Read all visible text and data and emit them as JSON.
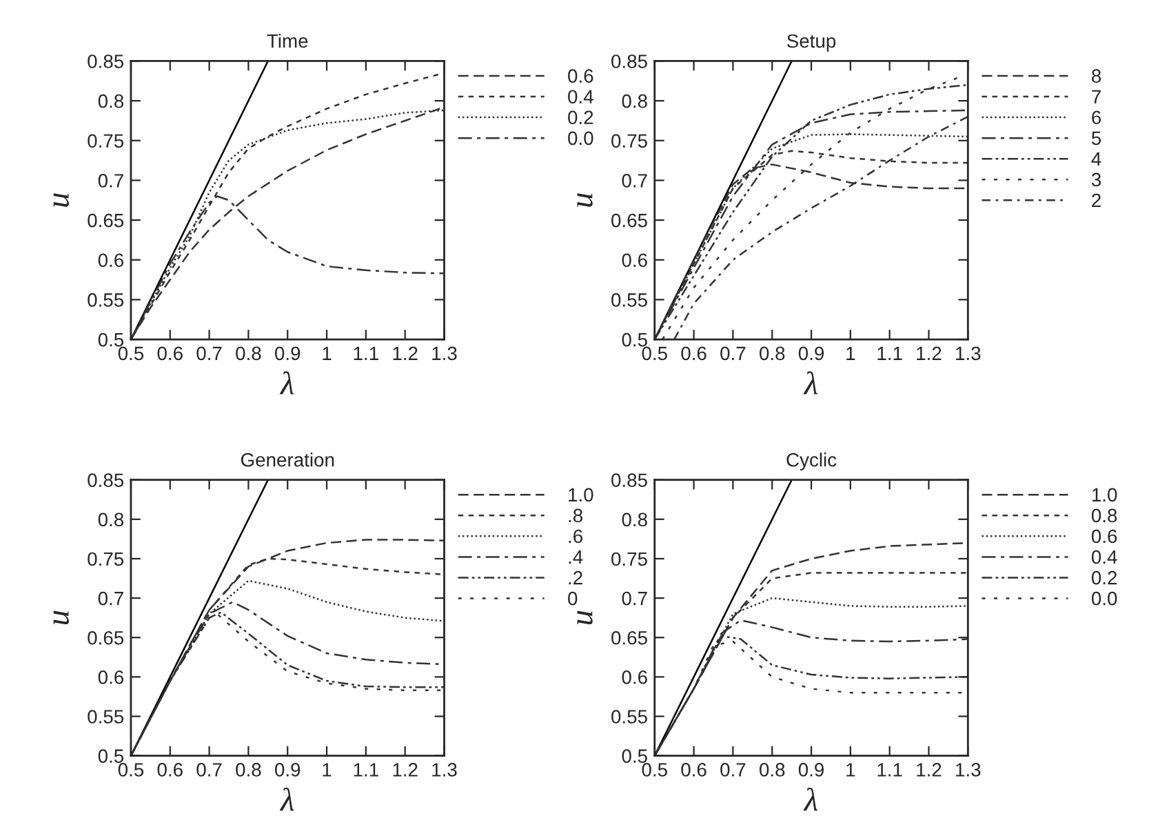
{
  "chart_data": [
    {
      "type": "line",
      "title": "Time",
      "xlabel": "λ",
      "ylabel": "u",
      "xlim": [
        0.5,
        1.3
      ],
      "ylim": [
        0.5,
        0.85
      ],
      "xticks": [
        0.5,
        0.6,
        0.7,
        0.8,
        0.9,
        1,
        1.1,
        1.2,
        1.3
      ],
      "yticks": [
        0.5,
        0.55,
        0.6,
        0.65,
        0.7,
        0.75,
        0.8,
        0.85
      ],
      "legend": "right",
      "series": [
        {
          "color": "#000000",
          "line_style": "solid",
          "x": [
            0.5,
            0.85
          ],
          "values": [
            0.5,
            0.85
          ]
        },
        {
          "name": "0.6",
          "color": "#333333",
          "line_style": "dashed",
          "x": [
            0.5,
            0.55,
            0.6,
            0.65,
            0.7,
            0.75,
            0.8,
            0.9,
            1.0,
            1.1,
            1.2,
            1.3
          ],
          "values": [
            0.5,
            0.54,
            0.575,
            0.61,
            0.638,
            0.66,
            0.68,
            0.712,
            0.738,
            0.758,
            0.775,
            0.792
          ]
        },
        {
          "name": "0.4",
          "color": "#333333",
          "line_style": "shortdashed",
          "x": [
            0.5,
            0.6,
            0.65,
            0.7,
            0.75,
            0.8,
            0.85,
            0.9,
            1.0,
            1.1,
            1.2,
            1.3
          ],
          "values": [
            0.5,
            0.585,
            0.625,
            0.668,
            0.71,
            0.74,
            0.755,
            0.768,
            0.79,
            0.808,
            0.822,
            0.835
          ]
        },
        {
          "name": "0.2",
          "color": "#333333",
          "line_style": "dotted",
          "x": [
            0.5,
            0.6,
            0.65,
            0.7,
            0.75,
            0.8,
            0.9,
            1.0,
            1.1,
            1.2,
            1.3
          ],
          "values": [
            0.5,
            0.59,
            0.63,
            0.685,
            0.725,
            0.745,
            0.763,
            0.772,
            0.777,
            0.785,
            0.788
          ]
        },
        {
          "name": "0.0",
          "color": "#333333",
          "line_style": "longdashdot",
          "x": [
            0.5,
            0.6,
            0.65,
            0.7,
            0.72,
            0.75,
            0.8,
            0.85,
            0.9,
            1.0,
            1.1,
            1.2,
            1.3
          ],
          "values": [
            0.5,
            0.595,
            0.635,
            0.672,
            0.68,
            0.675,
            0.65,
            0.625,
            0.61,
            0.592,
            0.587,
            0.584,
            0.583
          ]
        }
      ]
    },
    {
      "type": "line",
      "title": "Setup",
      "xlabel": "λ",
      "ylabel": "u",
      "xlim": [
        0.5,
        1.3
      ],
      "ylim": [
        0.5,
        0.85
      ],
      "xticks": [
        0.5,
        0.6,
        0.7,
        0.8,
        0.9,
        1,
        1.1,
        1.2,
        1.3
      ],
      "yticks": [
        0.5,
        0.55,
        0.6,
        0.65,
        0.7,
        0.75,
        0.8,
        0.85
      ],
      "legend": "right",
      "series": [
        {
          "color": "#000000",
          "line_style": "solid",
          "x": [
            0.5,
            0.85
          ],
          "values": [
            0.5,
            0.85
          ]
        },
        {
          "name": "8",
          "color": "#333333",
          "line_style": "dashed",
          "x": [
            0.5,
            0.6,
            0.7,
            0.75,
            0.8,
            0.9,
            1.0,
            1.1,
            1.2,
            1.3
          ],
          "values": [
            0.5,
            0.6,
            0.695,
            0.715,
            0.72,
            0.71,
            0.697,
            0.692,
            0.69,
            0.69
          ]
        },
        {
          "name": "7",
          "color": "#333333",
          "line_style": "shortdashed",
          "x": [
            0.5,
            0.6,
            0.7,
            0.8,
            0.85,
            0.9,
            1.0,
            1.1,
            1.2,
            1.3
          ],
          "values": [
            0.5,
            0.595,
            0.69,
            0.732,
            0.737,
            0.735,
            0.728,
            0.724,
            0.722,
            0.722
          ]
        },
        {
          "name": "6",
          "color": "#333333",
          "line_style": "dotted",
          "x": [
            0.5,
            0.6,
            0.7,
            0.8,
            0.9,
            1.0,
            1.1,
            1.2,
            1.3
          ],
          "values": [
            0.5,
            0.595,
            0.69,
            0.74,
            0.757,
            0.758,
            0.757,
            0.756,
            0.755
          ]
        },
        {
          "name": "5",
          "color": "#333333",
          "line_style": "longdashdot",
          "x": [
            0.5,
            0.6,
            0.7,
            0.8,
            0.9,
            1.0,
            1.1,
            1.2,
            1.3
          ],
          "values": [
            0.5,
            0.59,
            0.68,
            0.745,
            0.772,
            0.783,
            0.786,
            0.787,
            0.788
          ]
        },
        {
          "name": "4",
          "color": "#333333",
          "line_style": "dashdotdot",
          "x": [
            0.5,
            0.6,
            0.7,
            0.8,
            0.9,
            1.0,
            1.1,
            1.2,
            1.3
          ],
          "values": [
            0.5,
            0.58,
            0.66,
            0.73,
            0.775,
            0.795,
            0.808,
            0.815,
            0.82
          ]
        },
        {
          "name": "3",
          "color": "#333333",
          "line_style": "sparsedashed",
          "x": [
            0.52,
            0.6,
            0.7,
            0.8,
            0.9,
            1.0,
            1.1,
            1.2,
            1.28
          ],
          "values": [
            0.5,
            0.565,
            0.625,
            0.675,
            0.72,
            0.76,
            0.79,
            0.815,
            0.83
          ]
        },
        {
          "name": "2",
          "color": "#333333",
          "line_style": "dashdot",
          "x": [
            0.55,
            0.6,
            0.7,
            0.8,
            0.9,
            1.0,
            1.1,
            1.2,
            1.3
          ],
          "values": [
            0.5,
            0.545,
            0.6,
            0.635,
            0.665,
            0.693,
            0.725,
            0.755,
            0.78
          ]
        }
      ]
    },
    {
      "type": "line",
      "title": "Generation",
      "xlabel": "λ",
      "ylabel": "u",
      "xlim": [
        0.5,
        1.3
      ],
      "ylim": [
        0.5,
        0.85
      ],
      "xticks": [
        0.5,
        0.6,
        0.7,
        0.8,
        0.9,
        1,
        1.1,
        1.2,
        1.3
      ],
      "yticks": [
        0.5,
        0.55,
        0.6,
        0.65,
        0.7,
        0.75,
        0.8,
        0.85
      ],
      "legend": "right",
      "series": [
        {
          "color": "#000000",
          "line_style": "solid",
          "x": [
            0.5,
            0.85
          ],
          "values": [
            0.5,
            0.85
          ]
        },
        {
          "name": "1.0",
          "color": "#333333",
          "line_style": "dashed",
          "x": [
            0.5,
            0.6,
            0.7,
            0.8,
            0.9,
            1.0,
            1.1,
            1.2,
            1.3
          ],
          "values": [
            0.5,
            0.595,
            0.685,
            0.74,
            0.76,
            0.77,
            0.774,
            0.774,
            0.773
          ]
        },
        {
          "name": ".8",
          "color": "#333333",
          "line_style": "shortdashed",
          "x": [
            0.5,
            0.6,
            0.7,
            0.8,
            0.85,
            0.9,
            1.0,
            1.1,
            1.2,
            1.3
          ],
          "values": [
            0.5,
            0.595,
            0.685,
            0.742,
            0.75,
            0.749,
            0.743,
            0.737,
            0.733,
            0.73
          ]
        },
        {
          "name": ".6",
          "color": "#333333",
          "line_style": "dotted",
          "x": [
            0.5,
            0.6,
            0.7,
            0.8,
            0.9,
            1.0,
            1.1,
            1.2,
            1.3
          ],
          "values": [
            0.5,
            0.595,
            0.68,
            0.722,
            0.712,
            0.695,
            0.683,
            0.675,
            0.671
          ]
        },
        {
          "name": ".4",
          "color": "#333333",
          "line_style": "longdashdot",
          "x": [
            0.5,
            0.6,
            0.7,
            0.76,
            0.8,
            0.9,
            1.0,
            1.1,
            1.2,
            1.3
          ],
          "values": [
            0.5,
            0.595,
            0.68,
            0.695,
            0.685,
            0.652,
            0.63,
            0.622,
            0.618,
            0.616
          ]
        },
        {
          "name": ".2",
          "color": "#333333",
          "line_style": "dashdotdot",
          "x": [
            0.5,
            0.6,
            0.7,
            0.73,
            0.8,
            0.9,
            1.0,
            1.1,
            1.2,
            1.3
          ],
          "values": [
            0.5,
            0.595,
            0.675,
            0.682,
            0.655,
            0.615,
            0.595,
            0.588,
            0.587,
            0.587
          ]
        },
        {
          "name": "0",
          "color": "#333333",
          "line_style": "sparsedashed",
          "x": [
            0.5,
            0.6,
            0.7,
            0.72,
            0.8,
            0.9,
            1.0,
            1.1,
            1.2,
            1.3
          ],
          "values": [
            0.5,
            0.595,
            0.675,
            0.68,
            0.645,
            0.607,
            0.592,
            0.585,
            0.583,
            0.583
          ]
        }
      ]
    },
    {
      "type": "line",
      "title": "Cyclic",
      "xlabel": "λ",
      "ylabel": "u",
      "xlim": [
        0.5,
        1.3
      ],
      "ylim": [
        0.5,
        0.85
      ],
      "xticks": [
        0.5,
        0.6,
        0.7,
        0.8,
        0.9,
        1,
        1.1,
        1.2,
        1.3
      ],
      "yticks": [
        0.5,
        0.55,
        0.6,
        0.65,
        0.7,
        0.75,
        0.8,
        0.85
      ],
      "legend": "right",
      "series": [
        {
          "color": "#000000",
          "line_style": "solid",
          "x": [
            0.5,
            0.85
          ],
          "values": [
            0.5,
            0.85
          ]
        },
        {
          "name": "1.0",
          "color": "#333333",
          "line_style": "dashed",
          "x": [
            0.5,
            0.6,
            0.7,
            0.8,
            0.9,
            1.0,
            1.1,
            1.2,
            1.3
          ],
          "values": [
            0.5,
            0.585,
            0.675,
            0.735,
            0.75,
            0.76,
            0.766,
            0.768,
            0.77
          ]
        },
        {
          "name": "0.8",
          "color": "#333333",
          "line_style": "shortdashed",
          "x": [
            0.5,
            0.6,
            0.7,
            0.8,
            0.9,
            1.0,
            1.1,
            1.2,
            1.3
          ],
          "values": [
            0.5,
            0.585,
            0.675,
            0.725,
            0.732,
            0.732,
            0.732,
            0.732,
            0.732
          ]
        },
        {
          "name": "0.6",
          "color": "#333333",
          "line_style": "dotted",
          "x": [
            0.5,
            0.6,
            0.7,
            0.8,
            0.9,
            1.0,
            1.1,
            1.2,
            1.3
          ],
          "values": [
            0.5,
            0.585,
            0.68,
            0.7,
            0.695,
            0.69,
            0.689,
            0.689,
            0.69
          ]
        },
        {
          "name": "0.4",
          "color": "#333333",
          "line_style": "longdashdot",
          "x": [
            0.5,
            0.6,
            0.67,
            0.72,
            0.8,
            0.9,
            1.0,
            1.1,
            1.2,
            1.3
          ],
          "values": [
            0.5,
            0.585,
            0.655,
            0.672,
            0.663,
            0.65,
            0.646,
            0.645,
            0.646,
            0.648
          ]
        },
        {
          "name": "0.2",
          "color": "#333333",
          "line_style": "dashdotdot",
          "x": [
            0.5,
            0.6,
            0.67,
            0.72,
            0.8,
            0.9,
            1.0,
            1.1,
            1.2,
            1.3
          ],
          "values": [
            0.5,
            0.585,
            0.652,
            0.648,
            0.615,
            0.603,
            0.599,
            0.598,
            0.599,
            0.6
          ]
        },
        {
          "name": "0.0",
          "color": "#333333",
          "line_style": "sparsedashed",
          "x": [
            0.5,
            0.6,
            0.65,
            0.7,
            0.8,
            0.9,
            1.0,
            1.1,
            1.2,
            1.3
          ],
          "values": [
            0.5,
            0.585,
            0.64,
            0.645,
            0.6,
            0.585,
            0.58,
            0.58,
            0.58,
            0.58
          ]
        }
      ]
    }
  ]
}
